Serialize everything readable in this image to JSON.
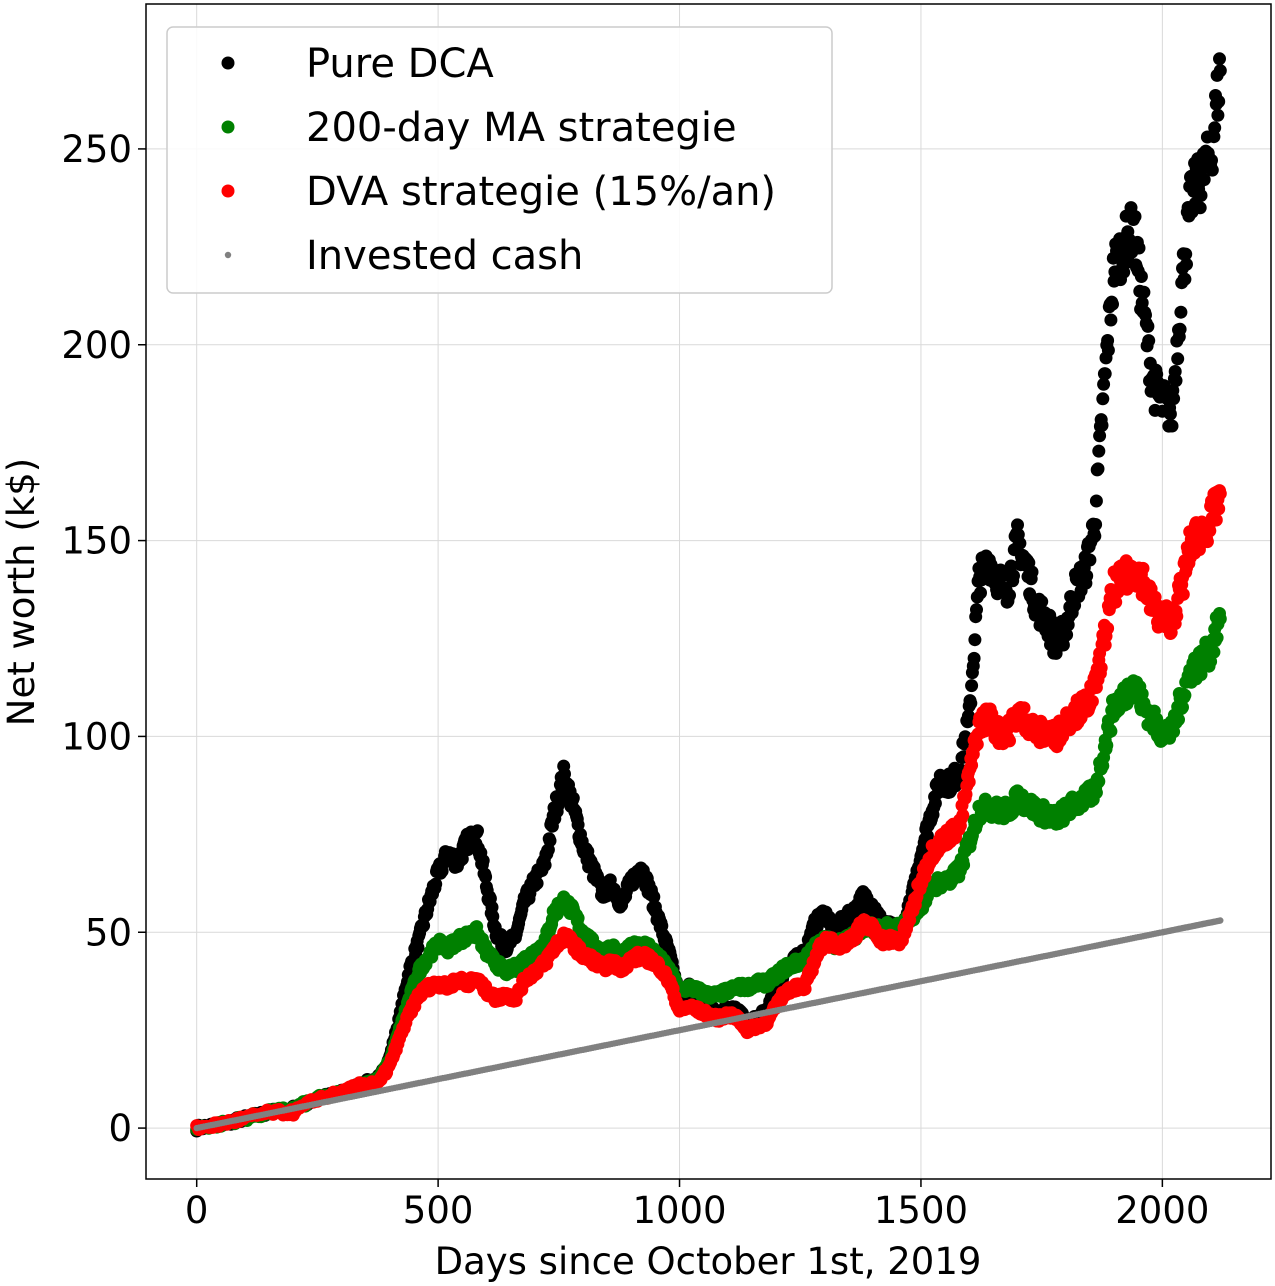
{
  "chart_data": {
    "type": "scatter",
    "title": "",
    "xlabel": "Days since October 1st, 2019",
    "ylabel": "Net worth (k$)",
    "xlim": [
      -105,
      2225
    ],
    "ylim": [
      -13,
      287
    ],
    "xticks": [
      0,
      500,
      1000,
      1500,
      2000
    ],
    "yticks": [
      0,
      50,
      100,
      150,
      200,
      250
    ],
    "grid": true,
    "legend_position": "top-left",
    "series": [
      {
        "name": "Pure DCA",
        "color": "#000000",
        "marker_size": "large",
        "points": [
          [
            0,
            0
          ],
          [
            50,
            1
          ],
          [
            100,
            2.5
          ],
          [
            150,
            4
          ],
          [
            200,
            5
          ],
          [
            250,
            7.5
          ],
          [
            300,
            9
          ],
          [
            340,
            11
          ],
          [
            380,
            13
          ],
          [
            400,
            18
          ],
          [
            420,
            28
          ],
          [
            440,
            40
          ],
          [
            460,
            48
          ],
          [
            480,
            57
          ],
          [
            500,
            65
          ],
          [
            520,
            70
          ],
          [
            540,
            68
          ],
          [
            560,
            73
          ],
          [
            580,
            75
          ],
          [
            600,
            62
          ],
          [
            620,
            50
          ],
          [
            640,
            46
          ],
          [
            660,
            49
          ],
          [
            680,
            58
          ],
          [
            700,
            63
          ],
          [
            720,
            67
          ],
          [
            740,
            80
          ],
          [
            760,
            90
          ],
          [
            780,
            82
          ],
          [
            800,
            72
          ],
          [
            820,
            66
          ],
          [
            840,
            60
          ],
          [
            860,
            62
          ],
          [
            880,
            57
          ],
          [
            900,
            63
          ],
          [
            920,
            67
          ],
          [
            940,
            60
          ],
          [
            960,
            52
          ],
          [
            980,
            44
          ],
          [
            1000,
            33
          ],
          [
            1020,
            36
          ],
          [
            1040,
            32
          ],
          [
            1060,
            31
          ],
          [
            1080,
            29
          ],
          [
            1100,
            31
          ],
          [
            1120,
            30
          ],
          [
            1140,
            27
          ],
          [
            1160,
            28
          ],
          [
            1180,
            30
          ],
          [
            1200,
            35
          ],
          [
            1220,
            41
          ],
          [
            1240,
            43
          ],
          [
            1260,
            45
          ],
          [
            1280,
            52
          ],
          [
            1300,
            55
          ],
          [
            1320,
            51
          ],
          [
            1340,
            53
          ],
          [
            1360,
            55
          ],
          [
            1380,
            59
          ],
          [
            1400,
            57
          ],
          [
            1420,
            52
          ],
          [
            1440,
            51
          ],
          [
            1460,
            50
          ],
          [
            1480,
            58
          ],
          [
            1500,
            70
          ],
          [
            1520,
            80
          ],
          [
            1540,
            89
          ],
          [
            1560,
            88
          ],
          [
            1580,
            91
          ],
          [
            1600,
            105
          ],
          [
            1620,
            140
          ],
          [
            1640,
            145
          ],
          [
            1660,
            140
          ],
          [
            1680,
            138
          ],
          [
            1700,
            150
          ],
          [
            1720,
            143
          ],
          [
            1740,
            133
          ],
          [
            1760,
            130
          ],
          [
            1780,
            123
          ],
          [
            1800,
            128
          ],
          [
            1820,
            138
          ],
          [
            1840,
            142
          ],
          [
            1860,
            155
          ],
          [
            1880,
            190
          ],
          [
            1900,
            220
          ],
          [
            1920,
            225
          ],
          [
            1940,
            230
          ],
          [
            1960,
            210
          ],
          [
            1980,
            190
          ],
          [
            2000,
            185
          ],
          [
            2020,
            183
          ],
          [
            2040,
            215
          ],
          [
            2060,
            238
          ],
          [
            2080,
            242
          ],
          [
            2100,
            248
          ],
          [
            2120,
            270
          ]
        ]
      },
      {
        "name": "200-day MA strategie",
        "color": "#008000",
        "marker_size": "large",
        "points": [
          [
            0,
            0
          ],
          [
            50,
            1
          ],
          [
            100,
            2.5
          ],
          [
            150,
            4
          ],
          [
            200,
            5
          ],
          [
            250,
            7.5
          ],
          [
            300,
            9
          ],
          [
            340,
            11
          ],
          [
            380,
            13
          ],
          [
            400,
            17
          ],
          [
            420,
            25
          ],
          [
            440,
            33
          ],
          [
            460,
            40
          ],
          [
            480,
            44
          ],
          [
            500,
            47
          ],
          [
            520,
            46
          ],
          [
            540,
            48
          ],
          [
            560,
            49
          ],
          [
            580,
            50
          ],
          [
            600,
            45
          ],
          [
            620,
            42
          ],
          [
            640,
            40
          ],
          [
            660,
            41
          ],
          [
            680,
            43
          ],
          [
            700,
            45
          ],
          [
            720,
            47
          ],
          [
            740,
            55
          ],
          [
            760,
            58
          ],
          [
            780,
            55
          ],
          [
            800,
            50
          ],
          [
            820,
            47
          ],
          [
            840,
            45
          ],
          [
            860,
            46
          ],
          [
            880,
            44
          ],
          [
            900,
            46
          ],
          [
            920,
            47
          ],
          [
            940,
            46
          ],
          [
            960,
            43
          ],
          [
            980,
            40
          ],
          [
            1000,
            35
          ],
          [
            1020,
            36
          ],
          [
            1040,
            35
          ],
          [
            1060,
            34
          ],
          [
            1080,
            34
          ],
          [
            1100,
            35
          ],
          [
            1120,
            36
          ],
          [
            1140,
            36
          ],
          [
            1160,
            37
          ],
          [
            1180,
            37
          ],
          [
            1200,
            39
          ],
          [
            1220,
            41
          ],
          [
            1240,
            42
          ],
          [
            1260,
            43
          ],
          [
            1280,
            46
          ],
          [
            1300,
            48
          ],
          [
            1320,
            47
          ],
          [
            1340,
            48
          ],
          [
            1360,
            49
          ],
          [
            1380,
            51
          ],
          [
            1400,
            51
          ],
          [
            1420,
            51
          ],
          [
            1440,
            51
          ],
          [
            1460,
            51
          ],
          [
            1480,
            54
          ],
          [
            1500,
            57
          ],
          [
            1520,
            61
          ],
          [
            1540,
            63
          ],
          [
            1560,
            63
          ],
          [
            1580,
            66
          ],
          [
            1600,
            73
          ],
          [
            1620,
            81
          ],
          [
            1640,
            82
          ],
          [
            1660,
            81
          ],
          [
            1680,
            81
          ],
          [
            1700,
            84
          ],
          [
            1720,
            83
          ],
          [
            1740,
            81
          ],
          [
            1760,
            80
          ],
          [
            1780,
            79
          ],
          [
            1800,
            81
          ],
          [
            1820,
            83
          ],
          [
            1840,
            84
          ],
          [
            1860,
            86
          ],
          [
            1880,
            97
          ],
          [
            1900,
            108
          ],
          [
            1920,
            110
          ],
          [
            1940,
            114
          ],
          [
            1960,
            108
          ],
          [
            1980,
            104
          ],
          [
            2000,
            101
          ],
          [
            2020,
            101
          ],
          [
            2040,
            110
          ],
          [
            2060,
            117
          ],
          [
            2080,
            119
          ],
          [
            2100,
            122
          ],
          [
            2120,
            130
          ]
        ]
      },
      {
        "name": "DVA strategie (15%/an)",
        "color": "#ff0000",
        "marker_size": "large",
        "points": [
          [
            0,
            0
          ],
          [
            50,
            1
          ],
          [
            100,
            2.5
          ],
          [
            150,
            4
          ],
          [
            200,
            4
          ],
          [
            250,
            7.5
          ],
          [
            300,
            9
          ],
          [
            340,
            11
          ],
          [
            380,
            12
          ],
          [
            400,
            16
          ],
          [
            420,
            23
          ],
          [
            440,
            29
          ],
          [
            460,
            34
          ],
          [
            480,
            36
          ],
          [
            500,
            37
          ],
          [
            520,
            36
          ],
          [
            540,
            38
          ],
          [
            560,
            37
          ],
          [
            580,
            38
          ],
          [
            600,
            35
          ],
          [
            620,
            33
          ],
          [
            640,
            34
          ],
          [
            660,
            33
          ],
          [
            680,
            38
          ],
          [
            700,
            40
          ],
          [
            720,
            42
          ],
          [
            740,
            46
          ],
          [
            760,
            49
          ],
          [
            780,
            47
          ],
          [
            800,
            44
          ],
          [
            820,
            43
          ],
          [
            840,
            41
          ],
          [
            860,
            42
          ],
          [
            880,
            41
          ],
          [
            900,
            43
          ],
          [
            920,
            44
          ],
          [
            940,
            43
          ],
          [
            960,
            41
          ],
          [
            980,
            37
          ],
          [
            1000,
            30
          ],
          [
            1020,
            31
          ],
          [
            1040,
            30
          ],
          [
            1060,
            29
          ],
          [
            1080,
            28
          ],
          [
            1100,
            29
          ],
          [
            1120,
            28
          ],
          [
            1140,
            25
          ],
          [
            1160,
            26
          ],
          [
            1180,
            27
          ],
          [
            1200,
            31
          ],
          [
            1220,
            35
          ],
          [
            1240,
            36
          ],
          [
            1260,
            36
          ],
          [
            1280,
            43
          ],
          [
            1300,
            48
          ],
          [
            1320,
            47
          ],
          [
            1340,
            47
          ],
          [
            1360,
            49
          ],
          [
            1380,
            52
          ],
          [
            1400,
            51
          ],
          [
            1420,
            48
          ],
          [
            1440,
            48
          ],
          [
            1460,
            48
          ],
          [
            1480,
            55
          ],
          [
            1500,
            63
          ],
          [
            1520,
            70
          ],
          [
            1540,
            73
          ],
          [
            1560,
            75
          ],
          [
            1580,
            77
          ],
          [
            1600,
            90
          ],
          [
            1620,
            103
          ],
          [
            1640,
            105
          ],
          [
            1660,
            101
          ],
          [
            1680,
            101
          ],
          [
            1700,
            106
          ],
          [
            1720,
            104
          ],
          [
            1740,
            101
          ],
          [
            1760,
            101
          ],
          [
            1780,
            100
          ],
          [
            1800,
            104
          ],
          [
            1820,
            106
          ],
          [
            1840,
            108
          ],
          [
            1860,
            112
          ],
          [
            1880,
            125
          ],
          [
            1900,
            138
          ],
          [
            1920,
            140
          ],
          [
            1940,
            143
          ],
          [
            1960,
            140
          ],
          [
            1980,
            133
          ],
          [
            2000,
            130
          ],
          [
            2020,
            130
          ],
          [
            2040,
            138
          ],
          [
            2060,
            150
          ],
          [
            2080,
            152
          ],
          [
            2100,
            155
          ],
          [
            2120,
            162
          ]
        ]
      },
      {
        "name": "Invested cash",
        "color": "#808080",
        "marker_size": "small",
        "points": [
          [
            0,
            0
          ],
          [
            200,
            5
          ],
          [
            400,
            10
          ],
          [
            600,
            15
          ],
          [
            800,
            20
          ],
          [
            1000,
            25
          ],
          [
            1200,
            30
          ],
          [
            1400,
            35
          ],
          [
            1600,
            40
          ],
          [
            1800,
            45
          ],
          [
            2000,
            50
          ],
          [
            2120,
            53
          ]
        ]
      }
    ]
  }
}
